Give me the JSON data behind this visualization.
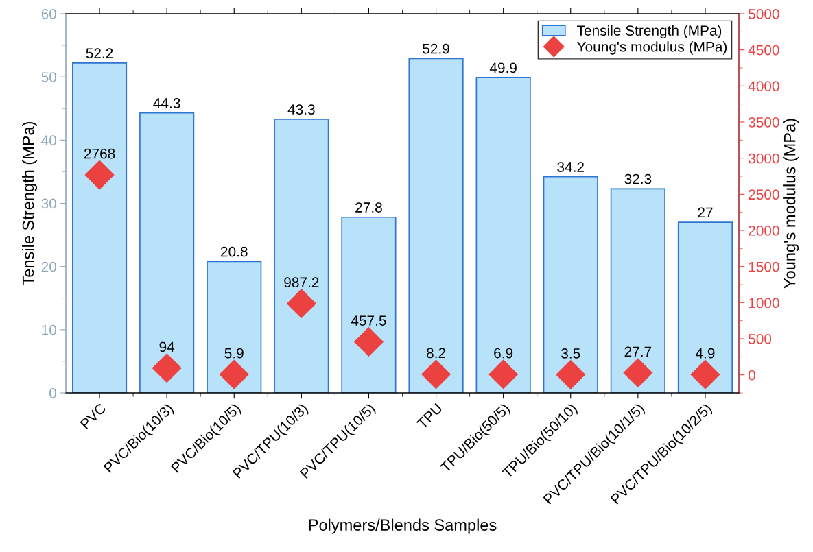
{
  "chart_data": {
    "type": "bar",
    "xlabel": "Polymers/Blends Samples",
    "ylabel": "Tensile Strength (MPa)",
    "y2label": "Young's modulus (MPa)",
    "categories": [
      "PVC",
      "PVC/Bio(10/3)",
      "PVC/Bio(10/5)",
      "PVC/TPU(10/3)",
      "PVC/TPU(10/5)",
      "TPU",
      "TPU/Bio(50/5)",
      "TPU/Bio(50/10)",
      "PVC/TPU/Bio(10/1/5)",
      "PVC/TPU/Bio(10/2/5)"
    ],
    "series": [
      {
        "name": "Tensile Strength (MPa)",
        "color": "#b8e2fa",
        "values": [
          52.2,
          44.3,
          20.8,
          43.3,
          27.8,
          52.9,
          49.9,
          34.2,
          32.3,
          27
        ]
      },
      {
        "name": "Young's modulus (MPa)",
        "type": "scatter",
        "axis": "y2",
        "color": "#eb4141",
        "marker": "diamond",
        "values": [
          2768,
          94,
          5.9,
          987.2,
          457.5,
          8.2,
          6.9,
          3.5,
          27.7,
          4.9
        ]
      }
    ],
    "ylim": [
      0,
      60
    ],
    "yticks": [
      0,
      10,
      20,
      30,
      40,
      50,
      60
    ],
    "y2lim": [
      -250,
      5000
    ],
    "y2ticks": [
      0,
      500,
      1000,
      1500,
      2000,
      2500,
      3000,
      3500,
      4000,
      4500,
      5000
    ],
    "data_labels": true,
    "legend": "top right",
    "grid": false
  }
}
